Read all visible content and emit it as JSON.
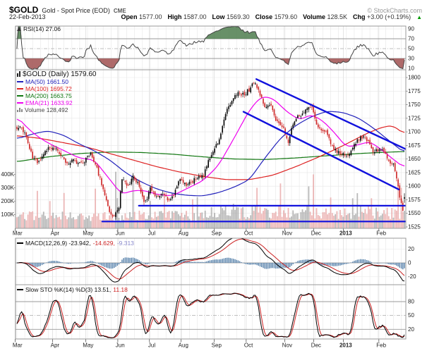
{
  "header": {
    "symbol": "$GOLD",
    "description": "Gold - Spot Price (EOD)",
    "exchange": "CME",
    "copyright": "© StockCharts.com",
    "date": "22-Feb-2013",
    "quote": [
      {
        "label": "Open",
        "value": "1577.00"
      },
      {
        "label": "High",
        "value": "1587.00"
      },
      {
        "label": "Low",
        "value": "1569.30"
      },
      {
        "label": "Close",
        "value": "1579.60"
      },
      {
        "label": "Volume",
        "value": "128.5K"
      },
      {
        "label": "Chg",
        "value": "+3.00 (+0.19%)"
      }
    ],
    "chg_arrow": "▲"
  },
  "rsi_panel": {
    "legend": "RSI(14) 27.06",
    "axis_labels": [
      90,
      70,
      50,
      30,
      10
    ],
    "overbought": 70,
    "oversold": 30,
    "mid": 50
  },
  "main_panel": {
    "title": "$GOLD (Daily) 1579.60",
    "legend": [
      {
        "label": "MA(50) 1661.50",
        "color": "#2222bb"
      },
      {
        "label": "MA(100) 1695.72",
        "color": "#dd2222"
      },
      {
        "label": "MA(200) 1663.75",
        "color": "#117711"
      },
      {
        "label": "EMA(21) 1633.92",
        "color": "#ee00ee"
      }
    ],
    "volume_label": "Volume 128,492",
    "price_axis": [
      1800,
      1775,
      1750,
      1725,
      1700,
      1675,
      1650,
      1625,
      1600,
      1575,
      1550,
      1525
    ],
    "volume_axis": [
      {
        "label": "400K",
        "v": 400
      },
      {
        "label": "300K",
        "v": 300
      },
      {
        "label": "200K",
        "v": 200
      },
      {
        "label": "100K",
        "v": 100
      }
    ]
  },
  "macd_panel": {
    "legend_parts": [
      {
        "text": "MACD(12,26,9) -23.942,",
        "color": "#111111"
      },
      {
        "text": "-14.629,",
        "color": "#cc2222"
      },
      {
        "text": "-9.313",
        "color": "#8888cc"
      }
    ],
    "axis_labels": [
      20,
      0,
      -20
    ]
  },
  "sto_panel": {
    "legend_parts": [
      {
        "text": "Slow STO %K(14) %D(3) 13.51,",
        "color": "#111111"
      },
      {
        "text": "11.18",
        "color": "#cc2222"
      }
    ],
    "axis_labels": [
      80,
      50,
      20
    ]
  },
  "colors": {
    "candle_up": "#000000",
    "candle_down": "#cc2222",
    "ma50": "#2222bb",
    "ma100": "#dd2222",
    "ma200": "#117711",
    "ema21": "#ee00ee",
    "volume_up": "#a8a8a8",
    "volume_down": "#e9a6a6",
    "annotation": "#1111dd",
    "rsi_line": "#444444",
    "rsi_over_fill": "#4d7d4d",
    "rsi_under_fill": "#a05050",
    "macd_line": "#000000",
    "macd_signal": "#cc2222",
    "macd_hist": "#5580aa",
    "sto_k": "#000000",
    "sto_d": "#cc2222",
    "grid": "#e7e7e7",
    "grid_month": "#d8d8d8",
    "panel_border": "#999999",
    "threshold": "#999999",
    "mid_dash": "#aaaaaa",
    "chg_up": "#009900"
  },
  "chart_data": {
    "type": "candlestick",
    "symbol": "$GOLD",
    "timeframe": "daily",
    "x_range": [
      "Mar-2012",
      "Feb-2013"
    ],
    "price_ylim": [
      1522,
      1814
    ],
    "volume_ylim_k": [
      0,
      450
    ],
    "days": 248,
    "last_bar": {
      "open": 1577.0,
      "high": 1587.0,
      "low": 1569.3,
      "close": 1579.6,
      "volume_k": 128.5
    },
    "months": [
      {
        "label": "Mar",
        "t": 0.005
      },
      {
        "label": "Apr",
        "t": 0.101
      },
      {
        "label": "May",
        "t": 0.186
      },
      {
        "label": "Jun",
        "t": 0.268
      },
      {
        "label": "Jul",
        "t": 0.349
      },
      {
        "label": "Aug",
        "t": 0.43
      },
      {
        "label": "Sep",
        "t": 0.515
      },
      {
        "label": "Oct",
        "t": 0.597
      },
      {
        "label": "Nov",
        "t": 0.696
      },
      {
        "label": "Dec",
        "t": 0.77
      },
      {
        "label": "2013",
        "t": 0.846,
        "bold": true
      },
      {
        "label": "Feb",
        "t": 0.937
      }
    ],
    "close_anchors": [
      [
        0,
        1702
      ],
      [
        0.01,
        1712
      ],
      [
        0.025,
        1688
      ],
      [
        0.04,
        1654
      ],
      [
        0.055,
        1642
      ],
      [
        0.07,
        1663
      ],
      [
        0.085,
        1672
      ],
      [
        0.1,
        1668
      ],
      [
        0.115,
        1654
      ],
      [
        0.13,
        1640
      ],
      [
        0.145,
        1652
      ],
      [
        0.16,
        1640
      ],
      [
        0.175,
        1646
      ],
      [
        0.19,
        1662
      ],
      [
        0.205,
        1636
      ],
      [
        0.22,
        1600
      ],
      [
        0.235,
        1566
      ],
      [
        0.245,
        1540
      ],
      [
        0.256,
        1556
      ],
      [
        0.263,
        1562
      ],
      [
        0.272,
        1620
      ],
      [
        0.285,
        1598
      ],
      [
        0.3,
        1618
      ],
      [
        0.315,
        1602
      ],
      [
        0.33,
        1566
      ],
      [
        0.345,
        1598
      ],
      [
        0.36,
        1578
      ],
      [
        0.375,
        1588
      ],
      [
        0.39,
        1576
      ],
      [
        0.405,
        1582
      ],
      [
        0.42,
        1612
      ],
      [
        0.435,
        1602
      ],
      [
        0.45,
        1608
      ],
      [
        0.465,
        1615
      ],
      [
        0.48,
        1618
      ],
      [
        0.495,
        1648
      ],
      [
        0.51,
        1668
      ],
      [
        0.525,
        1692
      ],
      [
        0.54,
        1735
      ],
      [
        0.555,
        1758
      ],
      [
        0.57,
        1772
      ],
      [
        0.585,
        1768
      ],
      [
        0.6,
        1778
      ],
      [
        0.612,
        1791
      ],
      [
        0.625,
        1772
      ],
      [
        0.64,
        1748
      ],
      [
        0.655,
        1753
      ],
      [
        0.67,
        1718
      ],
      [
        0.685,
        1712
      ],
      [
        0.7,
        1680
      ],
      [
        0.712,
        1716
      ],
      [
        0.725,
        1728
      ],
      [
        0.74,
        1732
      ],
      [
        0.752,
        1748
      ],
      [
        0.764,
        1742
      ],
      [
        0.772,
        1716
      ],
      [
        0.785,
        1702
      ],
      [
        0.8,
        1698
      ],
      [
        0.815,
        1668
      ],
      [
        0.83,
        1662
      ],
      [
        0.845,
        1657
      ],
      [
        0.86,
        1662
      ],
      [
        0.875,
        1682
      ],
      [
        0.89,
        1691
      ],
      [
        0.905,
        1683
      ],
      [
        0.92,
        1662
      ],
      [
        0.935,
        1668
      ],
      [
        0.948,
        1663
      ],
      [
        0.96,
        1645
      ],
      [
        0.972,
        1638
      ],
      [
        0.982,
        1608
      ],
      [
        0.99,
        1571
      ],
      [
        0.996,
        1556
      ],
      [
        1,
        1580
      ]
    ],
    "ma50_anchors": [
      [
        0,
        1687
      ],
      [
        0.04,
        1696
      ],
      [
        0.08,
        1702
      ],
      [
        0.12,
        1694
      ],
      [
        0.16,
        1678
      ],
      [
        0.2,
        1665
      ],
      [
        0.24,
        1648
      ],
      [
        0.28,
        1625
      ],
      [
        0.32,
        1608
      ],
      [
        0.36,
        1595
      ],
      [
        0.4,
        1587
      ],
      [
        0.44,
        1583
      ],
      [
        0.48,
        1582
      ],
      [
        0.52,
        1588
      ],
      [
        0.56,
        1598
      ],
      [
        0.6,
        1612
      ],
      [
        0.64,
        1652
      ],
      [
        0.68,
        1688
      ],
      [
        0.72,
        1712
      ],
      [
        0.76,
        1728
      ],
      [
        0.8,
        1738
      ],
      [
        0.84,
        1736
      ],
      [
        0.88,
        1726
      ],
      [
        0.92,
        1707
      ],
      [
        0.96,
        1684
      ],
      [
        1,
        1661.5
      ]
    ],
    "ma100_anchors": [
      [
        0,
        1693
      ],
      [
        0.06,
        1688
      ],
      [
        0.12,
        1680
      ],
      [
        0.18,
        1672
      ],
      [
        0.24,
        1660
      ],
      [
        0.3,
        1648
      ],
      [
        0.36,
        1636
      ],
      [
        0.42,
        1626
      ],
      [
        0.48,
        1618
      ],
      [
        0.54,
        1612
      ],
      [
        0.6,
        1612
      ],
      [
        0.66,
        1620
      ],
      [
        0.72,
        1636
      ],
      [
        0.78,
        1654
      ],
      [
        0.84,
        1674
      ],
      [
        0.9,
        1696
      ],
      [
        0.94,
        1708
      ],
      [
        0.97,
        1712
      ],
      [
        1,
        1695.7
      ]
    ],
    "ma200_anchors": [
      [
        0,
        1645
      ],
      [
        0.08,
        1654
      ],
      [
        0.16,
        1660
      ],
      [
        0.24,
        1663
      ],
      [
        0.32,
        1662
      ],
      [
        0.4,
        1659
      ],
      [
        0.48,
        1654
      ],
      [
        0.56,
        1650
      ],
      [
        0.64,
        1649
      ],
      [
        0.72,
        1652
      ],
      [
        0.8,
        1656
      ],
      [
        0.88,
        1660
      ],
      [
        0.94,
        1662
      ],
      [
        1,
        1663.8
      ]
    ],
    "ema21_anchors": [
      [
        0,
        1728
      ],
      [
        0.03,
        1705
      ],
      [
        0.06,
        1688
      ],
      [
        0.09,
        1676
      ],
      [
        0.12,
        1666
      ],
      [
        0.16,
        1652
      ],
      [
        0.2,
        1648
      ],
      [
        0.24,
        1612
      ],
      [
        0.27,
        1585
      ],
      [
        0.3,
        1592
      ],
      [
        0.33,
        1592
      ],
      [
        0.36,
        1585
      ],
      [
        0.4,
        1582
      ],
      [
        0.44,
        1596
      ],
      [
        0.48,
        1610
      ],
      [
        0.52,
        1638
      ],
      [
        0.56,
        1688
      ],
      [
        0.6,
        1740
      ],
      [
        0.63,
        1765
      ],
      [
        0.66,
        1762
      ],
      [
        0.7,
        1735
      ],
      [
        0.73,
        1722
      ],
      [
        0.76,
        1732
      ],
      [
        0.79,
        1720
      ],
      [
        0.82,
        1698
      ],
      [
        0.85,
        1672
      ],
      [
        0.88,
        1676
      ],
      [
        0.91,
        1682
      ],
      [
        0.94,
        1668
      ],
      [
        0.97,
        1650
      ],
      [
        1,
        1633.9
      ]
    ],
    "volume_spikes": [
      [
        0.256,
        420
      ],
      [
        0.3,
        360
      ],
      [
        0.62,
        300
      ],
      [
        0.764,
        400
      ],
      [
        0.88,
        260
      ],
      [
        0.985,
        320
      ],
      [
        0.993,
        300
      ]
    ],
    "annotations": {
      "trendlines": [
        {
          "x1": 0.617,
          "y1": 1797,
          "x2": 1.0,
          "y2": 1668
        },
        {
          "x1": 0.584,
          "y1": 1737,
          "x2": 0.982,
          "y2": 1594
        }
      ],
      "hlines": [
        {
          "price": 1564,
          "x1": 0.316,
          "x2": 1.0
        },
        {
          "price": 1535,
          "x1": 0.222,
          "x2": 1.0
        }
      ]
    },
    "indicators": {
      "rsi_period": 14,
      "rsi_last": 27.06,
      "macd_params": [
        12,
        26,
        9
      ],
      "macd_last": [
        -23.942,
        -14.629,
        -9.313
      ],
      "sto_params": [
        14,
        3
      ],
      "sto_last": [
        13.51,
        11.18
      ]
    }
  }
}
